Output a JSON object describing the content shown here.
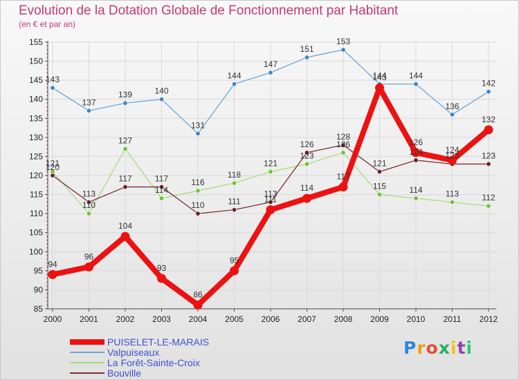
{
  "title": "Evolution de la Dotation Globale de Fonctionnement par Habitant",
  "subtitle": "(en € et par an)",
  "logo": {
    "text": "Proxiti",
    "letters": [
      "P",
      "r",
      "o",
      "x",
      "i",
      "t",
      "i"
    ],
    "letter_colors": [
      "#2e86de",
      "#f39c12",
      "#e74c3c",
      "#27ae60",
      "#f1c40f",
      "#8e44ad",
      "#2ecc71"
    ]
  },
  "chart_data": {
    "type": "line",
    "x": [
      "2000",
      "2001",
      "2002",
      "2003",
      "2004",
      "2005",
      "2006",
      "2007",
      "2008",
      "2009",
      "2010",
      "2011",
      "2012"
    ],
    "ylim": [
      85,
      155
    ],
    "yticks": [
      85,
      90,
      95,
      100,
      105,
      110,
      115,
      120,
      125,
      130,
      135,
      140,
      145,
      150,
      155
    ],
    "grid": true,
    "legend_position": "bottom-left",
    "series": [
      {
        "name": "PUISELET-LE-MARAIS",
        "color": "#ee1111",
        "marker_color": "#ee1111",
        "emphasis": true,
        "values": [
          94,
          96,
          104,
          93,
          86,
          95,
          111,
          114,
          117,
          143,
          126,
          124,
          132
        ]
      },
      {
        "name": "Valpuiseaux",
        "color": "#6aa6d6",
        "marker_color": "#3d86c6",
        "emphasis": false,
        "values": [
          143,
          137,
          139,
          140,
          131,
          144,
          147,
          151,
          153,
          144,
          144,
          136,
          142
        ]
      },
      {
        "name": "La Forêt-Sainte-Croix",
        "color": "#a6dc7e",
        "marker_color": "#6ec23a",
        "emphasis": false,
        "values": [
          121,
          110,
          127,
          114,
          116,
          118,
          121,
          123,
          126,
          115,
          114,
          113,
          112
        ]
      },
      {
        "name": "Bouville",
        "color": "#7a2d36",
        "marker_color": "#6a1e28",
        "emphasis": false,
        "values": [
          120,
          113,
          117,
          117,
          110,
          111,
          113,
          126,
          128,
          121,
          124,
          123,
          123
        ]
      }
    ]
  }
}
